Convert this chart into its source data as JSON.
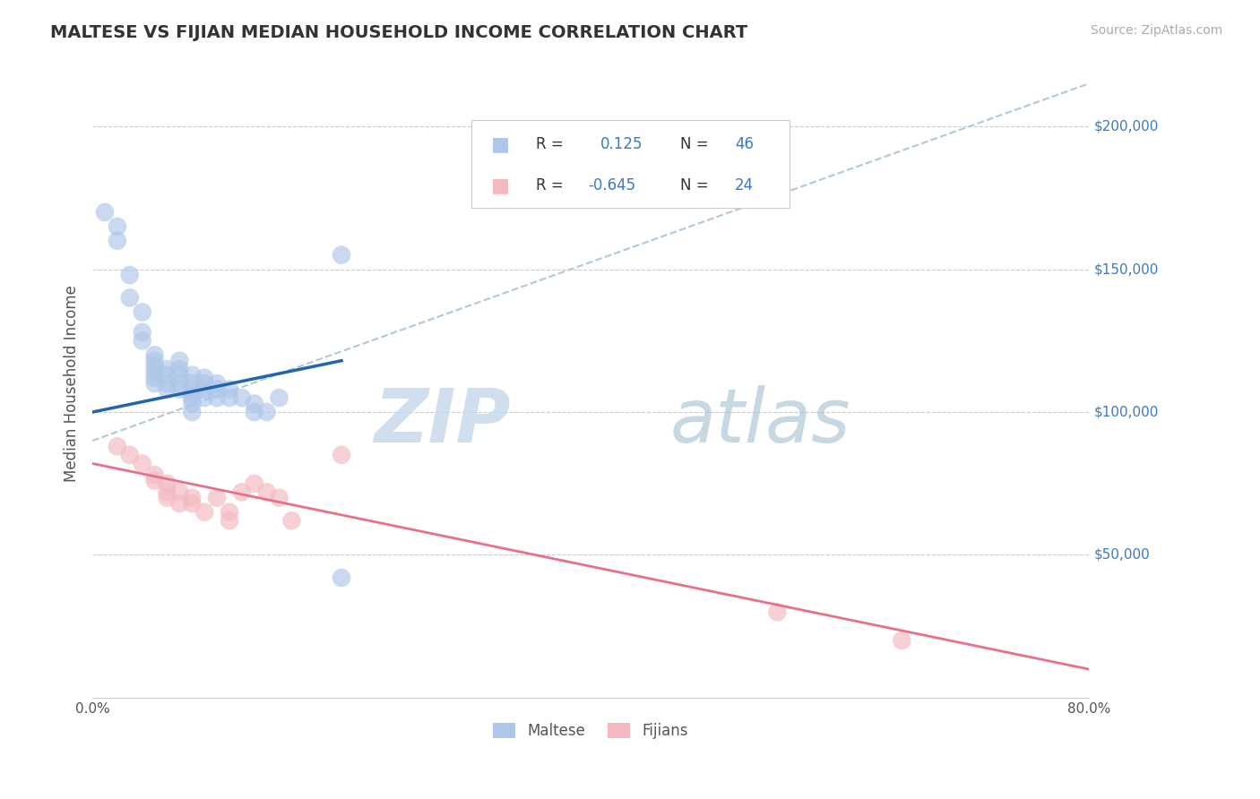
{
  "title": "MALTESE VS FIJIAN MEDIAN HOUSEHOLD INCOME CORRELATION CHART",
  "source": "Source: ZipAtlas.com",
  "ylabel": "Median Household Income",
  "xlim": [
    0.0,
    0.8
  ],
  "ylim": [
    0,
    220000
  ],
  "y_ticks": [
    50000,
    100000,
    150000,
    200000
  ],
  "y_tick_labels": [
    "$50,000",
    "$100,000",
    "$150,000",
    "$200,000"
  ],
  "maltese_R": 0.125,
  "maltese_N": 46,
  "fijian_R": -0.645,
  "fijian_N": 24,
  "maltese_color": "#aec6e8",
  "fijian_color": "#f4b8c1",
  "maltese_line_color": "#2166ac",
  "fijian_line_color": "#e8708a",
  "dashed_line_color": "#b0c8d8",
  "blue_text_color": "#3a7bbf",
  "title_color": "#333333",
  "maltese_line_x0": 0.0,
  "maltese_line_y0": 100000,
  "maltese_line_x1": 0.2,
  "maltese_line_y1": 118000,
  "fijian_line_x0": 0.0,
  "fijian_line_y0": 82000,
  "fijian_line_x1": 0.8,
  "fijian_line_y1": 10000,
  "dashed_line_x0": 0.0,
  "dashed_line_y0": 90000,
  "dashed_line_x1": 0.8,
  "dashed_line_y1": 215000,
  "maltese_x": [
    0.01,
    0.02,
    0.02,
    0.03,
    0.03,
    0.04,
    0.04,
    0.04,
    0.05,
    0.05,
    0.05,
    0.05,
    0.05,
    0.05,
    0.06,
    0.06,
    0.06,
    0.06,
    0.07,
    0.07,
    0.07,
    0.07,
    0.07,
    0.08,
    0.08,
    0.08,
    0.08,
    0.08,
    0.08,
    0.08,
    0.09,
    0.09,
    0.09,
    0.09,
    0.1,
    0.1,
    0.1,
    0.11,
    0.11,
    0.12,
    0.13,
    0.13,
    0.14,
    0.15,
    0.2,
    0.2
  ],
  "maltese_y": [
    170000,
    165000,
    160000,
    148000,
    140000,
    135000,
    128000,
    125000,
    120000,
    118000,
    116000,
    114000,
    112000,
    110000,
    115000,
    113000,
    110000,
    108000,
    118000,
    115000,
    113000,
    110000,
    108000,
    113000,
    110000,
    108000,
    106000,
    105000,
    103000,
    100000,
    112000,
    110000,
    108000,
    105000,
    110000,
    108000,
    105000,
    108000,
    105000,
    105000,
    103000,
    100000,
    100000,
    105000,
    155000,
    42000
  ],
  "fijian_x": [
    0.02,
    0.03,
    0.04,
    0.05,
    0.05,
    0.06,
    0.06,
    0.06,
    0.07,
    0.07,
    0.08,
    0.08,
    0.09,
    0.1,
    0.11,
    0.11,
    0.12,
    0.13,
    0.14,
    0.15,
    0.16,
    0.2,
    0.55,
    0.65
  ],
  "fijian_y": [
    88000,
    85000,
    82000,
    78000,
    76000,
    75000,
    72000,
    70000,
    72000,
    68000,
    70000,
    68000,
    65000,
    70000,
    65000,
    62000,
    72000,
    75000,
    72000,
    70000,
    62000,
    85000,
    30000,
    20000
  ]
}
